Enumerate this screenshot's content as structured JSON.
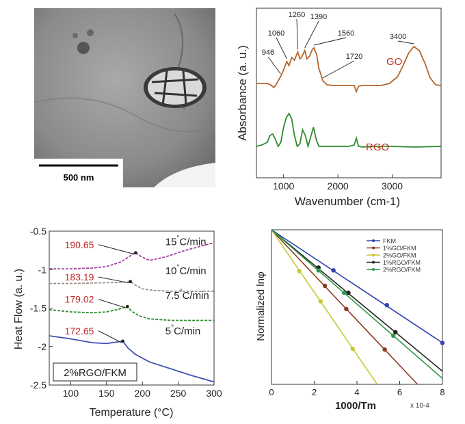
{
  "tem": {
    "scale_label": "500 nm"
  },
  "chart_data": [
    {
      "type": "line",
      "title": "",
      "xlabel": "Wavenumber (cm-1)",
      "ylabel": "Absorbance (a. u.)",
      "xlim": [
        500,
        3900
      ],
      "xticks": [
        1000,
        2000,
        3000
      ],
      "series": [
        {
          "name": "GO",
          "color": "#b5652c",
          "x": [
            500,
            700,
            760,
            820,
            860,
            900,
            946,
            980,
            1060,
            1100,
            1150,
            1200,
            1260,
            1300,
            1330,
            1390,
            1430,
            1480,
            1530,
            1560,
            1610,
            1650,
            1700,
            1720,
            1800,
            1900,
            2000,
            2100,
            2200,
            2300,
            2340,
            2380,
            2450,
            2600,
            2800,
            2950,
            3100,
            3200,
            3300,
            3400,
            3500,
            3600,
            3700,
            3800,
            3900
          ],
          "y": [
            122,
            122,
            124,
            128,
            124,
            118,
            112,
            106,
            90,
            96,
            84,
            88,
            76,
            86,
            84,
            74,
            86,
            82,
            72,
            70,
            80,
            100,
            112,
            118,
            124,
            125,
            125,
            125,
            125,
            125,
            134,
            126,
            125,
            125,
            125,
            122,
            112,
            96,
            78,
            68,
            74,
            92,
            114,
            124,
            125
          ]
        },
        {
          "name": "RGO",
          "color": "#2e8b2e",
          "x": [
            500,
            600,
            700,
            750,
            800,
            850,
            900,
            950,
            1000,
            1050,
            1100,
            1150,
            1200,
            1250,
            1300,
            1350,
            1400,
            1450,
            1500,
            1550,
            1600,
            1650,
            1700,
            1800,
            2000,
            2200,
            2300,
            2340,
            2380,
            2450,
            2600,
            3000,
            3400,
            3900
          ],
          "y": [
            214,
            212,
            208,
            198,
            196,
            204,
            214,
            208,
            186,
            172,
            166,
            174,
            198,
            214,
            210,
            190,
            198,
            214,
            200,
            186,
            204,
            214,
            214,
            214,
            214,
            214,
            212,
            202,
            214,
            215,
            214,
            214,
            215,
            214
          ]
        }
      ],
      "annotations": [
        {
          "text": "946",
          "x": 946
        },
        {
          "text": "1060",
          "x": 1060
        },
        {
          "text": "1260",
          "x": 1260
        },
        {
          "text": "1390",
          "x": 1390
        },
        {
          "text": "1560",
          "x": 1560
        },
        {
          "text": "1720",
          "x": 1720
        },
        {
          "text": "3400",
          "x": 3400
        }
      ],
      "legend": [
        "GO",
        "RGO"
      ]
    },
    {
      "type": "line",
      "title": "",
      "xlabel": "Temperature (°C)",
      "ylabel": "Heat Flow (a. u.)",
      "xlim": [
        70,
        300
      ],
      "ylim": [
        -2.5,
        -0.5
      ],
      "xticks": [
        100,
        150,
        200,
        250,
        300
      ],
      "yticks": [
        -0.5,
        -1,
        -1.5,
        -2,
        -2.5
      ],
      "series": [
        {
          "name": "15°C/min",
          "color": "#a040a0",
          "peak": "190.65",
          "x": [
            70,
            100,
            130,
            150,
            170,
            180,
            188,
            191,
            198,
            210,
            230,
            260,
            300
          ],
          "y": [
            -0.99,
            -0.99,
            -0.98,
            -0.96,
            -0.9,
            -0.84,
            -0.79,
            -0.78,
            -0.83,
            -0.88,
            -0.84,
            -0.75,
            -0.65
          ]
        },
        {
          "name": "10°C/min",
          "color": "#9a9088",
          "peak": "183.19",
          "x": [
            70,
            100,
            130,
            150,
            170,
            180,
            183.19,
            190,
            200,
            215,
            240,
            300
          ],
          "y": [
            -1.18,
            -1.18,
            -1.175,
            -1.17,
            -1.165,
            -1.16,
            -1.155,
            -1.2,
            -1.25,
            -1.27,
            -1.28,
            -1.28
          ]
        },
        {
          "name": "7.5°C/min",
          "color": "#2a8a2a",
          "peak": "179.02",
          "x": [
            70,
            100,
            130,
            150,
            165,
            175,
            179.02,
            185,
            195,
            210,
            240,
            300
          ],
          "y": [
            -1.52,
            -1.55,
            -1.56,
            -1.55,
            -1.52,
            -1.49,
            -1.48,
            -1.54,
            -1.6,
            -1.64,
            -1.66,
            -1.66
          ]
        },
        {
          "name": "5°C/min",
          "color": "#4050b0",
          "peak": "172.65",
          "x": [
            70,
            100,
            130,
            150,
            165,
            172.65,
            180,
            190,
            210,
            240,
            270,
            300
          ],
          "y": [
            -1.86,
            -1.9,
            -1.95,
            -1.96,
            -1.94,
            -1.93,
            -2.02,
            -2.1,
            -2.2,
            -2.29,
            -2.38,
            -2.46
          ]
        }
      ],
      "peak_label_color": "#c02828",
      "annotations": [
        "190.65",
        "183.19",
        "179.02",
        "172.65"
      ],
      "box_label": "2%RGO/FKM"
    },
    {
      "type": "scatter",
      "title": "",
      "xlabel": "1000/Tm",
      "ylabel": "Normalized lnφ",
      "xlim": [
        0,
        8
      ],
      "ylim": [
        -4,
        0
      ],
      "xticks": [
        0,
        2,
        4,
        6,
        8
      ],
      "x_multiplier": "x 10-4",
      "series": [
        {
          "name": "FKM",
          "color": "#3040b0",
          "x": [
            0,
            2.9,
            5.4,
            8.0
          ],
          "y": [
            0,
            -1.05,
            -1.95,
            -2.93
          ]
        },
        {
          "name": "1%GO/FKM",
          "color": "#8b3a20",
          "x": [
            0,
            2.5,
            3.5,
            5.3
          ],
          "y": [
            0,
            -1.45,
            -2.05,
            -3.1
          ]
        },
        {
          "name": "2%GO/FKM",
          "color": "#c8c830",
          "x": [
            0,
            1.3,
            2.3,
            3.8
          ],
          "y": [
            0,
            -1.07,
            -1.85,
            -3.08
          ]
        },
        {
          "name": "1%RGO/FKM",
          "color": "#222222",
          "x": [
            0,
            2.2,
            3.6,
            5.8
          ],
          "y": [
            0,
            -0.98,
            -1.63,
            -2.65
          ]
        },
        {
          "name": "2%RGO/FKM",
          "color": "#2e9a4a",
          "x": [
            0,
            2.2,
            3.4,
            5.7
          ],
          "y": [
            0,
            -1.05,
            -1.63,
            -2.74
          ]
        }
      ],
      "legend": [
        "FKM",
        "1%GO/FKM",
        "2%GO/FKM",
        "1%RGO/FKM",
        "2%RGO/FKM"
      ]
    }
  ]
}
